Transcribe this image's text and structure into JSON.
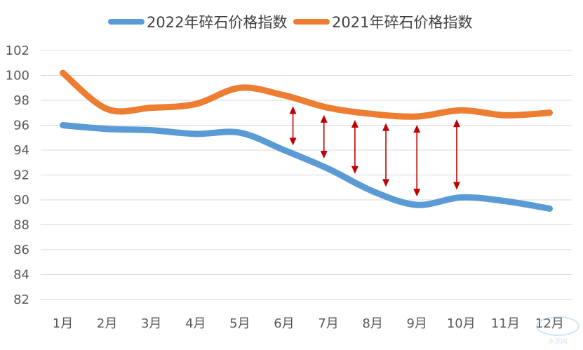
{
  "chart_data": {
    "type": "line",
    "categories": [
      "1月",
      "2月",
      "3月",
      "4月",
      "5月",
      "6月",
      "7月",
      "8月",
      "9月",
      "10月",
      "11月",
      "12月"
    ],
    "ylim": [
      82,
      102
    ],
    "yticks": [
      82,
      84,
      86,
      88,
      90,
      92,
      94,
      96,
      98,
      100,
      102
    ],
    "grid": true,
    "legend_position": "top",
    "series": [
      {
        "name": "2022年碎石价格指数",
        "color": "#5b9bd5",
        "values": [
          96.0,
          95.7,
          95.6,
          95.3,
          95.4,
          94.0,
          92.5,
          90.7,
          89.6,
          90.2,
          89.9,
          89.3
        ]
      },
      {
        "name": "2021年碎石价格指数",
        "color": "#ed7d31",
        "values": [
          100.2,
          97.3,
          97.4,
          97.7,
          99.0,
          98.4,
          97.4,
          96.9,
          96.7,
          97.2,
          96.8,
          97.0
        ]
      }
    ],
    "annotations": {
      "type": "double-arrow",
      "color": "#c00000",
      "positions_x": [
        6.2,
        6.9,
        7.6,
        8.3,
        9.0,
        9.9
      ]
    }
  },
  "watermark": "水泥网"
}
